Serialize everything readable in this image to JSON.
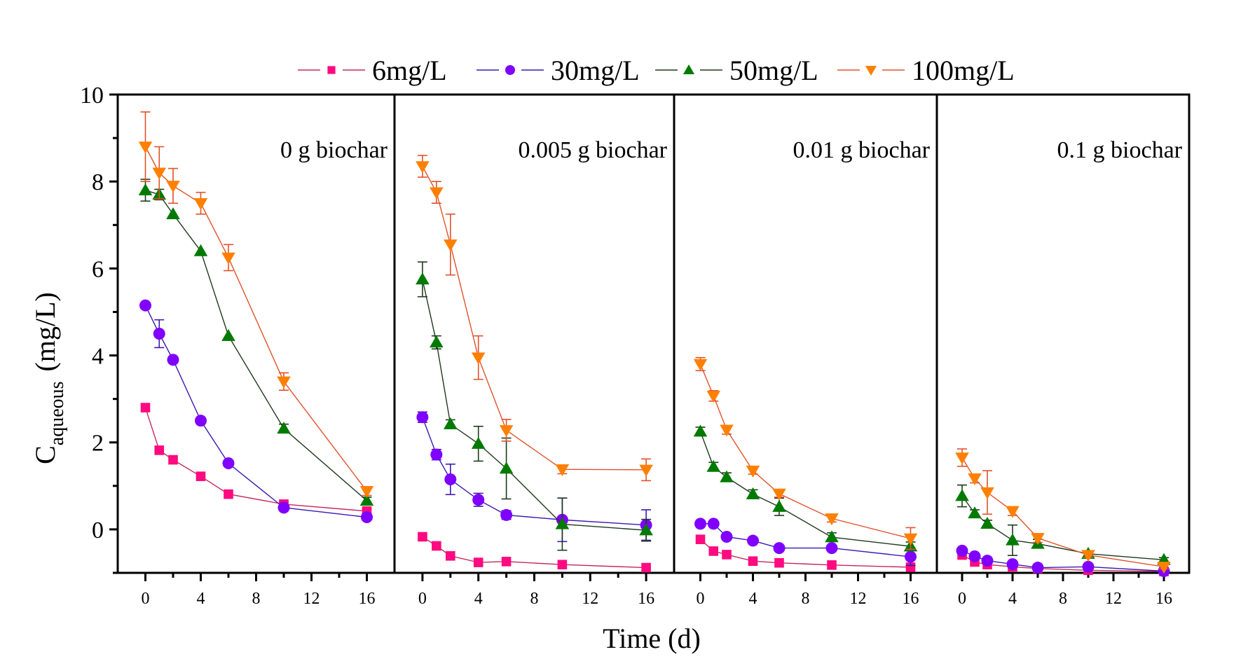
{
  "chart_data": {
    "type": "line",
    "title": "",
    "xlabel": "Time (d)",
    "ylabel": "C",
    "ylabel_subscript": "aqueous",
    "ylabel_unit": "(mg/L)",
    "xlim": [
      -2,
      18
    ],
    "ylim": [
      -1,
      10
    ],
    "x_ticks": [
      0,
      4,
      8,
      12,
      16
    ],
    "x_minor_ticks": [
      2,
      6,
      10,
      14
    ],
    "y_ticks": [
      0,
      2,
      4,
      6,
      8,
      10
    ],
    "y_minor_ticks": [
      -1,
      1,
      3,
      5,
      7,
      9
    ],
    "grid": false,
    "legend_position": "top-center",
    "x": [
      0,
      1,
      2,
      4,
      6,
      10,
      16
    ],
    "series_styles": [
      {
        "name": "6mg/L",
        "marker": "square",
        "marker_color": "#FF0A80",
        "line_color": "#C8285A"
      },
      {
        "name": "30mg/L",
        "marker": "circle",
        "marker_color": "#7F00FF",
        "line_color": "#3A1AB0"
      },
      {
        "name": "50mg/L",
        "marker": "triangle-up",
        "marker_color": "#007A00",
        "line_color": "#1E3A1E"
      },
      {
        "name": "100mg/L",
        "marker": "triangle-down",
        "marker_color": "#FF8000",
        "line_color": "#E0522A"
      }
    ],
    "panels": [
      {
        "label": "0 g biochar",
        "series": [
          {
            "name": "6mg/L",
            "values": [
              2.8,
              1.82,
              1.6,
              1.22,
              0.81,
              0.58,
              0.42
            ],
            "errors": [
              0,
              0,
              0,
              0,
              0,
              0.05,
              0.05
            ]
          },
          {
            "name": "30mg/L",
            "values": [
              5.15,
              4.5,
              3.9,
              2.5,
              1.52,
              0.5,
              0.28
            ],
            "errors": [
              0,
              0.32,
              0,
              0,
              0,
              0.05,
              0.05
            ]
          },
          {
            "name": "50mg/L",
            "values": [
              7.8,
              7.7,
              7.25,
              6.4,
              4.45,
              2.32,
              0.66
            ],
            "errors": [
              0.25,
              0.12,
              0,
              0,
              0,
              0.1,
              0.08
            ]
          },
          {
            "name": "100mg/L",
            "values": [
              8.8,
              8.2,
              7.9,
              7.5,
              6.25,
              3.4,
              0.88
            ],
            "errors": [
              0.8,
              0.6,
              0.4,
              0.25,
              0.3,
              0.2,
              0.1
            ]
          }
        ]
      },
      {
        "label": "0.005 g biochar",
        "series": [
          {
            "name": "6mg/L",
            "values": [
              -0.17,
              -0.38,
              -0.61,
              -0.76,
              -0.74,
              -0.81,
              -0.88
            ],
            "errors": [
              0,
              0,
              0,
              0,
              0,
              0,
              0
            ]
          },
          {
            "name": "30mg/L",
            "values": [
              2.58,
              1.72,
              1.15,
              0.68,
              0.33,
              0.22,
              0.1
            ],
            "errors": [
              0.12,
              0.12,
              0.35,
              0.15,
              0.1,
              0.5,
              0.35
            ]
          },
          {
            "name": "50mg/L",
            "values": [
              5.75,
              4.3,
              2.42,
              1.97,
              1.4,
              0.12,
              -0.02
            ],
            "errors": [
              0.4,
              0.15,
              0.1,
              0.4,
              0.7,
              0.6,
              0.25
            ]
          },
          {
            "name": "100mg/L",
            "values": [
              8.35,
              7.75,
              6.55,
              3.95,
              2.28,
              1.38,
              1.37
            ],
            "errors": [
              0.25,
              0.25,
              0.7,
              0.5,
              0.25,
              0.1,
              0.25
            ]
          }
        ]
      },
      {
        "label": "0.01 g biochar",
        "series": [
          {
            "name": "6mg/L",
            "values": [
              -0.23,
              -0.5,
              -0.58,
              -0.73,
              -0.77,
              -0.82,
              -0.87
            ],
            "errors": [
              0,
              0,
              0,
              0,
              0,
              0,
              0
            ]
          },
          {
            "name": "30mg/L",
            "values": [
              0.13,
              0.13,
              -0.17,
              -0.26,
              -0.43,
              -0.43,
              -0.63
            ],
            "errors": [
              0,
              0,
              0,
              0,
              0,
              0,
              0.2
            ]
          },
          {
            "name": "50mg/L",
            "values": [
              2.25,
              1.44,
              1.2,
              0.81,
              0.52,
              -0.18,
              -0.39
            ],
            "errors": [
              0.1,
              0.1,
              0.1,
              0.1,
              0.2,
              0.1,
              0.1
            ]
          },
          {
            "name": "100mg/L",
            "values": [
              3.8,
              3.07,
              2.29,
              1.35,
              0.82,
              0.25,
              -0.21
            ],
            "errors": [
              0.15,
              0.12,
              0.1,
              0.08,
              0.08,
              0.08,
              0.25
            ]
          }
        ]
      },
      {
        "label": "0.1 g biochar",
        "series": [
          {
            "name": "6mg/L",
            "values": [
              -0.59,
              -0.75,
              -0.81,
              -0.86,
              -0.9,
              -0.94,
              -0.97
            ],
            "errors": [
              0,
              0,
              0,
              0,
              0,
              0,
              0
            ]
          },
          {
            "name": "30mg/L",
            "values": [
              -0.49,
              -0.62,
              -0.72,
              -0.8,
              -0.88,
              -0.86,
              -0.96
            ],
            "errors": [
              0.05,
              0.05,
              0.05,
              0.05,
              0.03,
              0.05,
              0.05
            ]
          },
          {
            "name": "50mg/L",
            "values": [
              0.77,
              0.37,
              0.13,
              -0.25,
              -0.33,
              -0.56,
              -0.7
            ],
            "errors": [
              0.25,
              0.08,
              0.08,
              0.35,
              0.1,
              0.05,
              0.05
            ]
          },
          {
            "name": "100mg/L",
            "values": [
              1.65,
              1.17,
              0.85,
              0.42,
              -0.2,
              -0.59,
              -0.86
            ],
            "errors": [
              0.2,
              0.1,
              0.5,
              0.1,
              0.1,
              0.05,
              0.05
            ]
          }
        ]
      }
    ]
  }
}
